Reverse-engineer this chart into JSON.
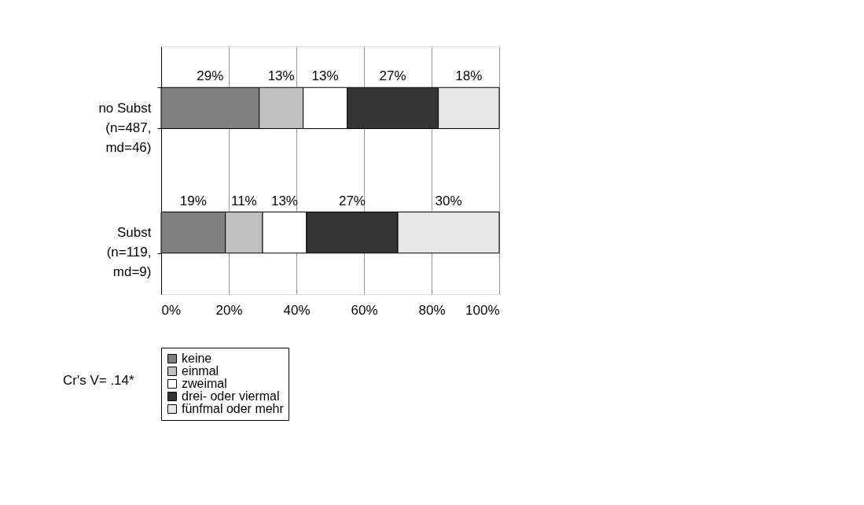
{
  "chart_data": {
    "type": "bar",
    "orientation": "horizontal",
    "stacked": true,
    "categories": [
      "no Subst\n(n=487,\nmd=46)",
      "Subst\n(n=119,\nmd=9)"
    ],
    "series": [
      {
        "name": "keine",
        "color": "#808080",
        "values": [
          29,
          19
        ],
        "value_labels": [
          "29%",
          "19%"
        ]
      },
      {
        "name": "einmal",
        "color": "#c0c0c0",
        "values": [
          13,
          11
        ],
        "value_labels": [
          "13%",
          "11%"
        ]
      },
      {
        "name": "zweimal",
        "color": "#ffffff",
        "values": [
          13,
          13
        ],
        "value_labels": [
          "13%",
          "13%"
        ]
      },
      {
        "name": "drei- oder viermal",
        "color": "#333333",
        "values": [
          27,
          27
        ],
        "value_labels": [
          "27%",
          "27%"
        ]
      },
      {
        "name": "fünfmal oder mehr",
        "color": "#e6e6e6",
        "values": [
          18,
          30
        ],
        "value_labels": [
          "18%",
          "30%"
        ]
      }
    ],
    "xlim": [
      0,
      100
    ],
    "xticks": [
      {
        "value": 0,
        "label": "0%"
      },
      {
        "value": 20,
        "label": "20%"
      },
      {
        "value": 40,
        "label": "40%"
      },
      {
        "value": 60,
        "label": "60%"
      },
      {
        "value": 80,
        "label": "80%"
      },
      {
        "value": 100,
        "label": "100%"
      }
    ],
    "grid": "x",
    "legend": "bottom",
    "annotations": [
      "Cr's V= .14*"
    ]
  }
}
